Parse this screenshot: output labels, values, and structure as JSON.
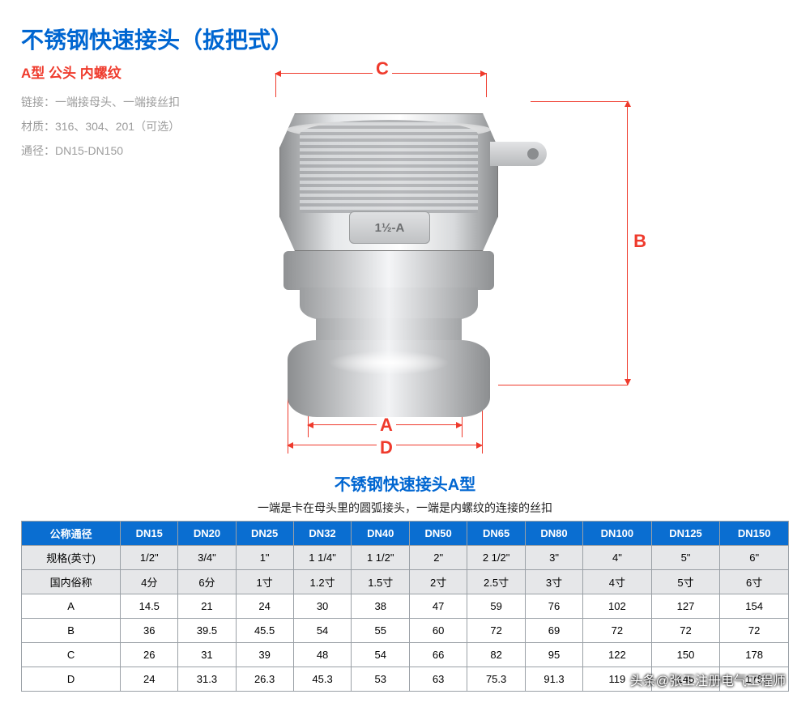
{
  "title": "不锈钢快速接头（扳把式）",
  "subtitle": "A型 公头 内螺纹",
  "specs": [
    "链接：一端接母头、一端接丝扣",
    "材质：316、304、201（可选）",
    "通径：DN15-DN150"
  ],
  "stamp_text": "1½-A",
  "dim_labels": {
    "A": "A",
    "B": "B",
    "C": "C",
    "D": "D"
  },
  "colors": {
    "title_blue": "#0066d1",
    "accent_red": "#ef3a2c",
    "spec_gray": "#9c9c9c",
    "header_blue": "#0a6ed1",
    "border_gray": "#9aa0a6",
    "row_gray": "#e6e7e9"
  },
  "table": {
    "title": "不锈钢快速接头A型",
    "subtitle": "一端是卡在母头里的圆弧接头，一端是内螺纹的连接的丝扣",
    "header_first": "公称通径",
    "dn_columns": [
      "DN15",
      "DN20",
      "DN25",
      "DN32",
      "DN40",
      "DN50",
      "DN65",
      "DN80",
      "DN100",
      "DN125",
      "DN150"
    ],
    "rows": [
      {
        "label": "规格(英寸)",
        "gray": true,
        "cells": [
          "1/2\"",
          "3/4\"",
          "1\"",
          "1 1/4\"",
          "1 1/2\"",
          "2\"",
          "2 1/2\"",
          "3\"",
          "4\"",
          "5\"",
          "6\""
        ]
      },
      {
        "label": "国内俗称",
        "gray": true,
        "cells": [
          "4分",
          "6分",
          "1寸",
          "1.2寸",
          "1.5寸",
          "2寸",
          "2.5寸",
          "3寸",
          "4寸",
          "5寸",
          "6寸"
        ]
      },
      {
        "label": "A",
        "gray": false,
        "cells": [
          "14.5",
          "21",
          "24",
          "30",
          "38",
          "47",
          "59",
          "76",
          "102",
          "127",
          "154"
        ]
      },
      {
        "label": "B",
        "gray": false,
        "cells": [
          "36",
          "39.5",
          "45.5",
          "54",
          "55",
          "60",
          "72",
          "69",
          "72",
          "72",
          "72"
        ]
      },
      {
        "label": "C",
        "gray": false,
        "cells": [
          "26",
          "31",
          "39",
          "48",
          "54",
          "66",
          "82",
          "95",
          "122",
          "150",
          "178"
        ]
      },
      {
        "label": "D",
        "gray": false,
        "cells": [
          "24",
          "31.3",
          "26.3",
          "45.3",
          "53",
          "63",
          "75.3",
          "91.3",
          "119",
          "145",
          "175"
        ]
      }
    ]
  },
  "watermark": "头条@张工注册电气工程师"
}
